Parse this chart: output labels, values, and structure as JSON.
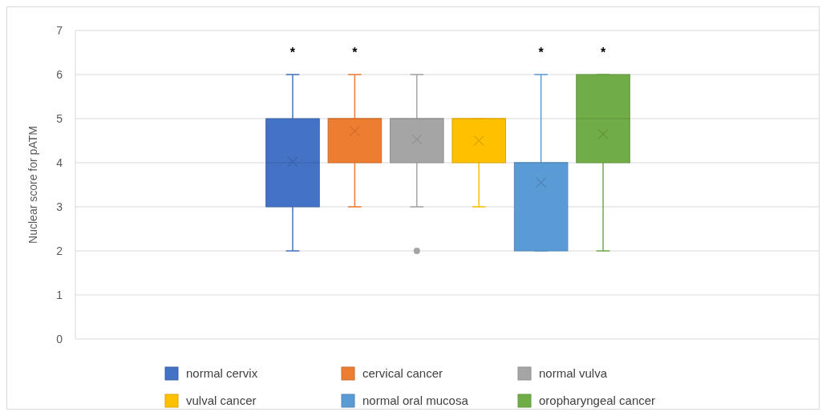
{
  "chart_data": {
    "type": "box",
    "ylabel": "Nuclear score for pATM",
    "categories": [
      null
    ],
    "ylim": [
      0,
      7
    ],
    "yticks": [
      0,
      1,
      2,
      3,
      4,
      5,
      6,
      7
    ],
    "grid": "y",
    "legend": "bottom",
    "series": [
      {
        "name": "normal cervix",
        "color": "#4472c4",
        "boxes": [
          {
            "low": 2,
            "q1": 3,
            "median": 4,
            "q3": 5,
            "high": 6,
            "mean": 4.02
          }
        ],
        "value_labels": [
          "*"
        ]
      },
      {
        "name": "cervical cancer",
        "color": "#ed7d31",
        "boxes": [
          {
            "low": 3,
            "q1": 4,
            "median": 5,
            "q3": 5,
            "high": 6,
            "mean": 4.72
          }
        ],
        "value_labels": [
          "*"
        ]
      },
      {
        "name": "normal vulva",
        "color": "#a5a5a5",
        "boxes": [
          {
            "low": 3,
            "q1": 4,
            "median": 5,
            "q3": 5,
            "high": 6,
            "mean": 4.53,
            "outliers": [
              2
            ]
          }
        ],
        "value_labels": [
          null
        ]
      },
      {
        "name": "vulval cancer",
        "color": "#ffc000",
        "boxes": [
          {
            "low": 3,
            "q1": 4,
            "median": 5,
            "q3": 5,
            "high": 5,
            "mean": 4.5
          }
        ],
        "value_labels": [
          null
        ]
      },
      {
        "name": "normal oral mucosa",
        "color": "#5b9bd5",
        "boxes": [
          {
            "low": 2,
            "q1": 2,
            "median": 4,
            "q3": 4,
            "high": 6,
            "mean": 3.55
          }
        ],
        "value_labels": [
          "*"
        ]
      },
      {
        "name": "oropharyngeal cancer",
        "color": "#70ad47",
        "boxes": [
          {
            "low": 2,
            "q1": 4,
            "median": 5,
            "q3": 6,
            "high": 6,
            "mean": 4.65
          }
        ],
        "value_labels": [
          "*"
        ]
      }
    ]
  }
}
